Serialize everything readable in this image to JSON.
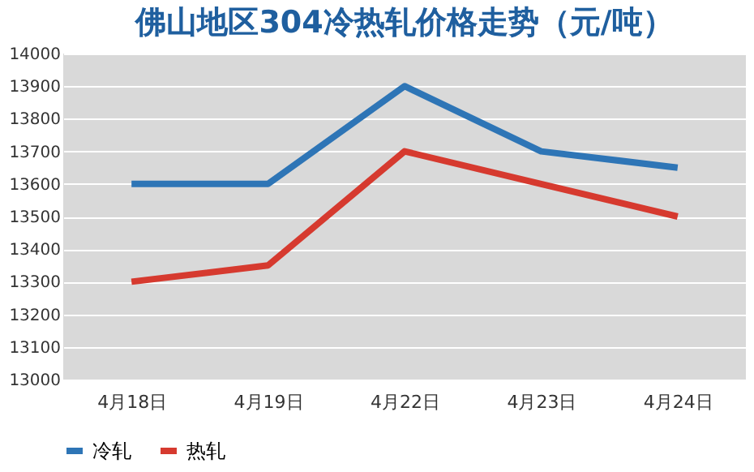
{
  "chart_data": {
    "type": "line",
    "title": "佛山地区304冷热轧价格走势（元/吨）",
    "categories": [
      "4月18日",
      "4月19日",
      "4月22日",
      "4月23日",
      "4月24日"
    ],
    "series": [
      {
        "name": "冷轧",
        "color": "#2e75b6",
        "values": [
          13600,
          13600,
          13900,
          13700,
          13650
        ]
      },
      {
        "name": "热轧",
        "color": "#d63a2f",
        "values": [
          13300,
          13350,
          13700,
          13600,
          13500
        ]
      }
    ],
    "ylim": [
      13000,
      14000
    ],
    "yticks": [
      13000,
      13100,
      13200,
      13300,
      13400,
      13500,
      13600,
      13700,
      13800,
      13900,
      14000
    ],
    "grid": "y",
    "legend": "bottom",
    "marker": "none",
    "line_style": "solid"
  }
}
